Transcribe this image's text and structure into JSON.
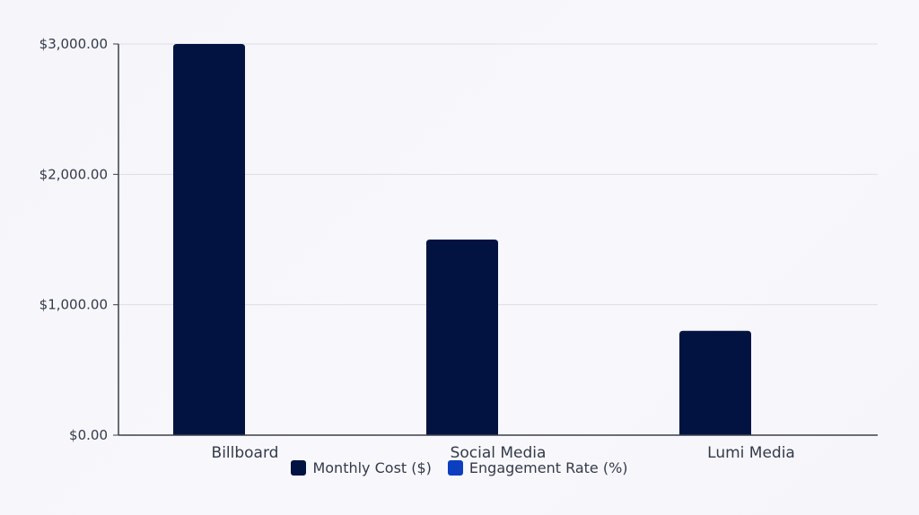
{
  "chart_data": {
    "type": "bar",
    "title": "",
    "xlabel": "",
    "ylabel": "",
    "categories": [
      "Billboard",
      "Social Media",
      "Lumi Media"
    ],
    "series": [
      {
        "name": "Monthly Cost ($)",
        "color": "#031341",
        "values": [
          3000,
          1500,
          800
        ]
      },
      {
        "name": "Engagement Rate (%)",
        "color": "#0b3fbf",
        "values": [
          0,
          0,
          0
        ]
      }
    ],
    "ylim": [
      0,
      3000
    ],
    "yticks": [
      0,
      1000,
      2000,
      3000
    ],
    "ytick_labels": [
      "$0.00",
      "$1,000.00",
      "$2,000.00",
      "$3,000.00"
    ],
    "grid": true,
    "legend_position": "bottom"
  }
}
